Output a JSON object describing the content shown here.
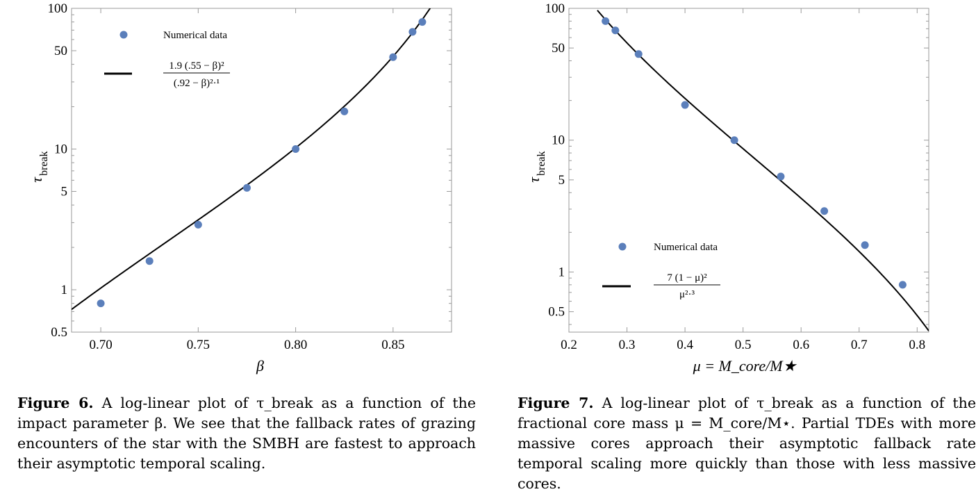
{
  "chart_data": [
    {
      "type": "scatter",
      "xlabel": "β",
      "ylabel_main": "τ",
      "ylabel_sub": "break",
      "yscale": "log",
      "xlim": [
        0.685,
        0.88
      ],
      "ylim": [
        0.5,
        100
      ],
      "x_ticks": [
        "0.70",
        "0.75",
        "0.80",
        "0.85"
      ],
      "x_tick_values": [
        0.7,
        0.75,
        0.8,
        0.85
      ],
      "y_ticks": [
        "0.5",
        "1",
        "5",
        "10",
        "50",
        "100"
      ],
      "y_tick_values": [
        0.5,
        1,
        5,
        10,
        50,
        100
      ],
      "grid": false,
      "legend_position": "top-left",
      "series": [
        {
          "name": "Numerical data",
          "kind": "points",
          "color": "#5b7fbb",
          "x": [
            0.7,
            0.725,
            0.75,
            0.775,
            0.8,
            0.825,
            0.85,
            0.86,
            0.865
          ],
          "y": [
            0.8,
            1.6,
            2.9,
            5.3,
            10.0,
            18.5,
            45.0,
            68.0,
            80.0
          ]
        },
        {
          "name_numerator": "1.9 (.55 − β)²",
          "name_denominator": "(.92 − β)²·¹",
          "kind": "fit",
          "color": "#000000",
          "formula": "1.9*(0.55-b)^2/(0.92-b)^2.1"
        }
      ]
    },
    {
      "type": "scatter",
      "xlabel": "μ = M_core/M★",
      "ylabel_main": "τ",
      "ylabel_sub": "break",
      "yscale": "log",
      "xlim": [
        0.2,
        0.82
      ],
      "ylim": [
        0.35,
        100
      ],
      "x_ticks": [
        "0.2",
        "0.3",
        "0.4",
        "0.5",
        "0.6",
        "0.7",
        "0.8"
      ],
      "x_tick_values": [
        0.2,
        0.3,
        0.4,
        0.5,
        0.6,
        0.7,
        0.8
      ],
      "y_ticks": [
        "0.5",
        "1",
        "5",
        "10",
        "50",
        "100"
      ],
      "y_tick_values": [
        0.5,
        1,
        5,
        10,
        50,
        100
      ],
      "grid": false,
      "legend_position": "bottom-left",
      "series": [
        {
          "name": "Numerical data",
          "kind": "points",
          "color": "#5b7fbb",
          "x": [
            0.263,
            0.28,
            0.32,
            0.4,
            0.485,
            0.565,
            0.64,
            0.71,
            0.775
          ],
          "y": [
            80.0,
            68.0,
            45.0,
            18.5,
            10.0,
            5.3,
            2.9,
            1.6,
            0.8
          ]
        },
        {
          "name_numerator": "7 (1 − μ)²",
          "name_denominator": "μ²·³",
          "kind": "fit",
          "color": "#000000",
          "formula": "7*(1-m)^2/m^2.3"
        }
      ]
    }
  ],
  "captions": [
    {
      "label": "Figure 6.",
      "text": "A log-linear plot of τ_break as a function of the impact parameter β. We see that the fallback rates of grazing encounters of the star with the SMBH are fastest to approach their asymptotic temporal scaling."
    },
    {
      "label": "Figure 7.",
      "text": "A log-linear plot of τ_break as a function of the fractional core mass μ = M_core/M⋆. Partial TDEs with more massive cores approach their asymptotic fallback rate temporal scaling more quickly than those with less massive cores."
    }
  ]
}
